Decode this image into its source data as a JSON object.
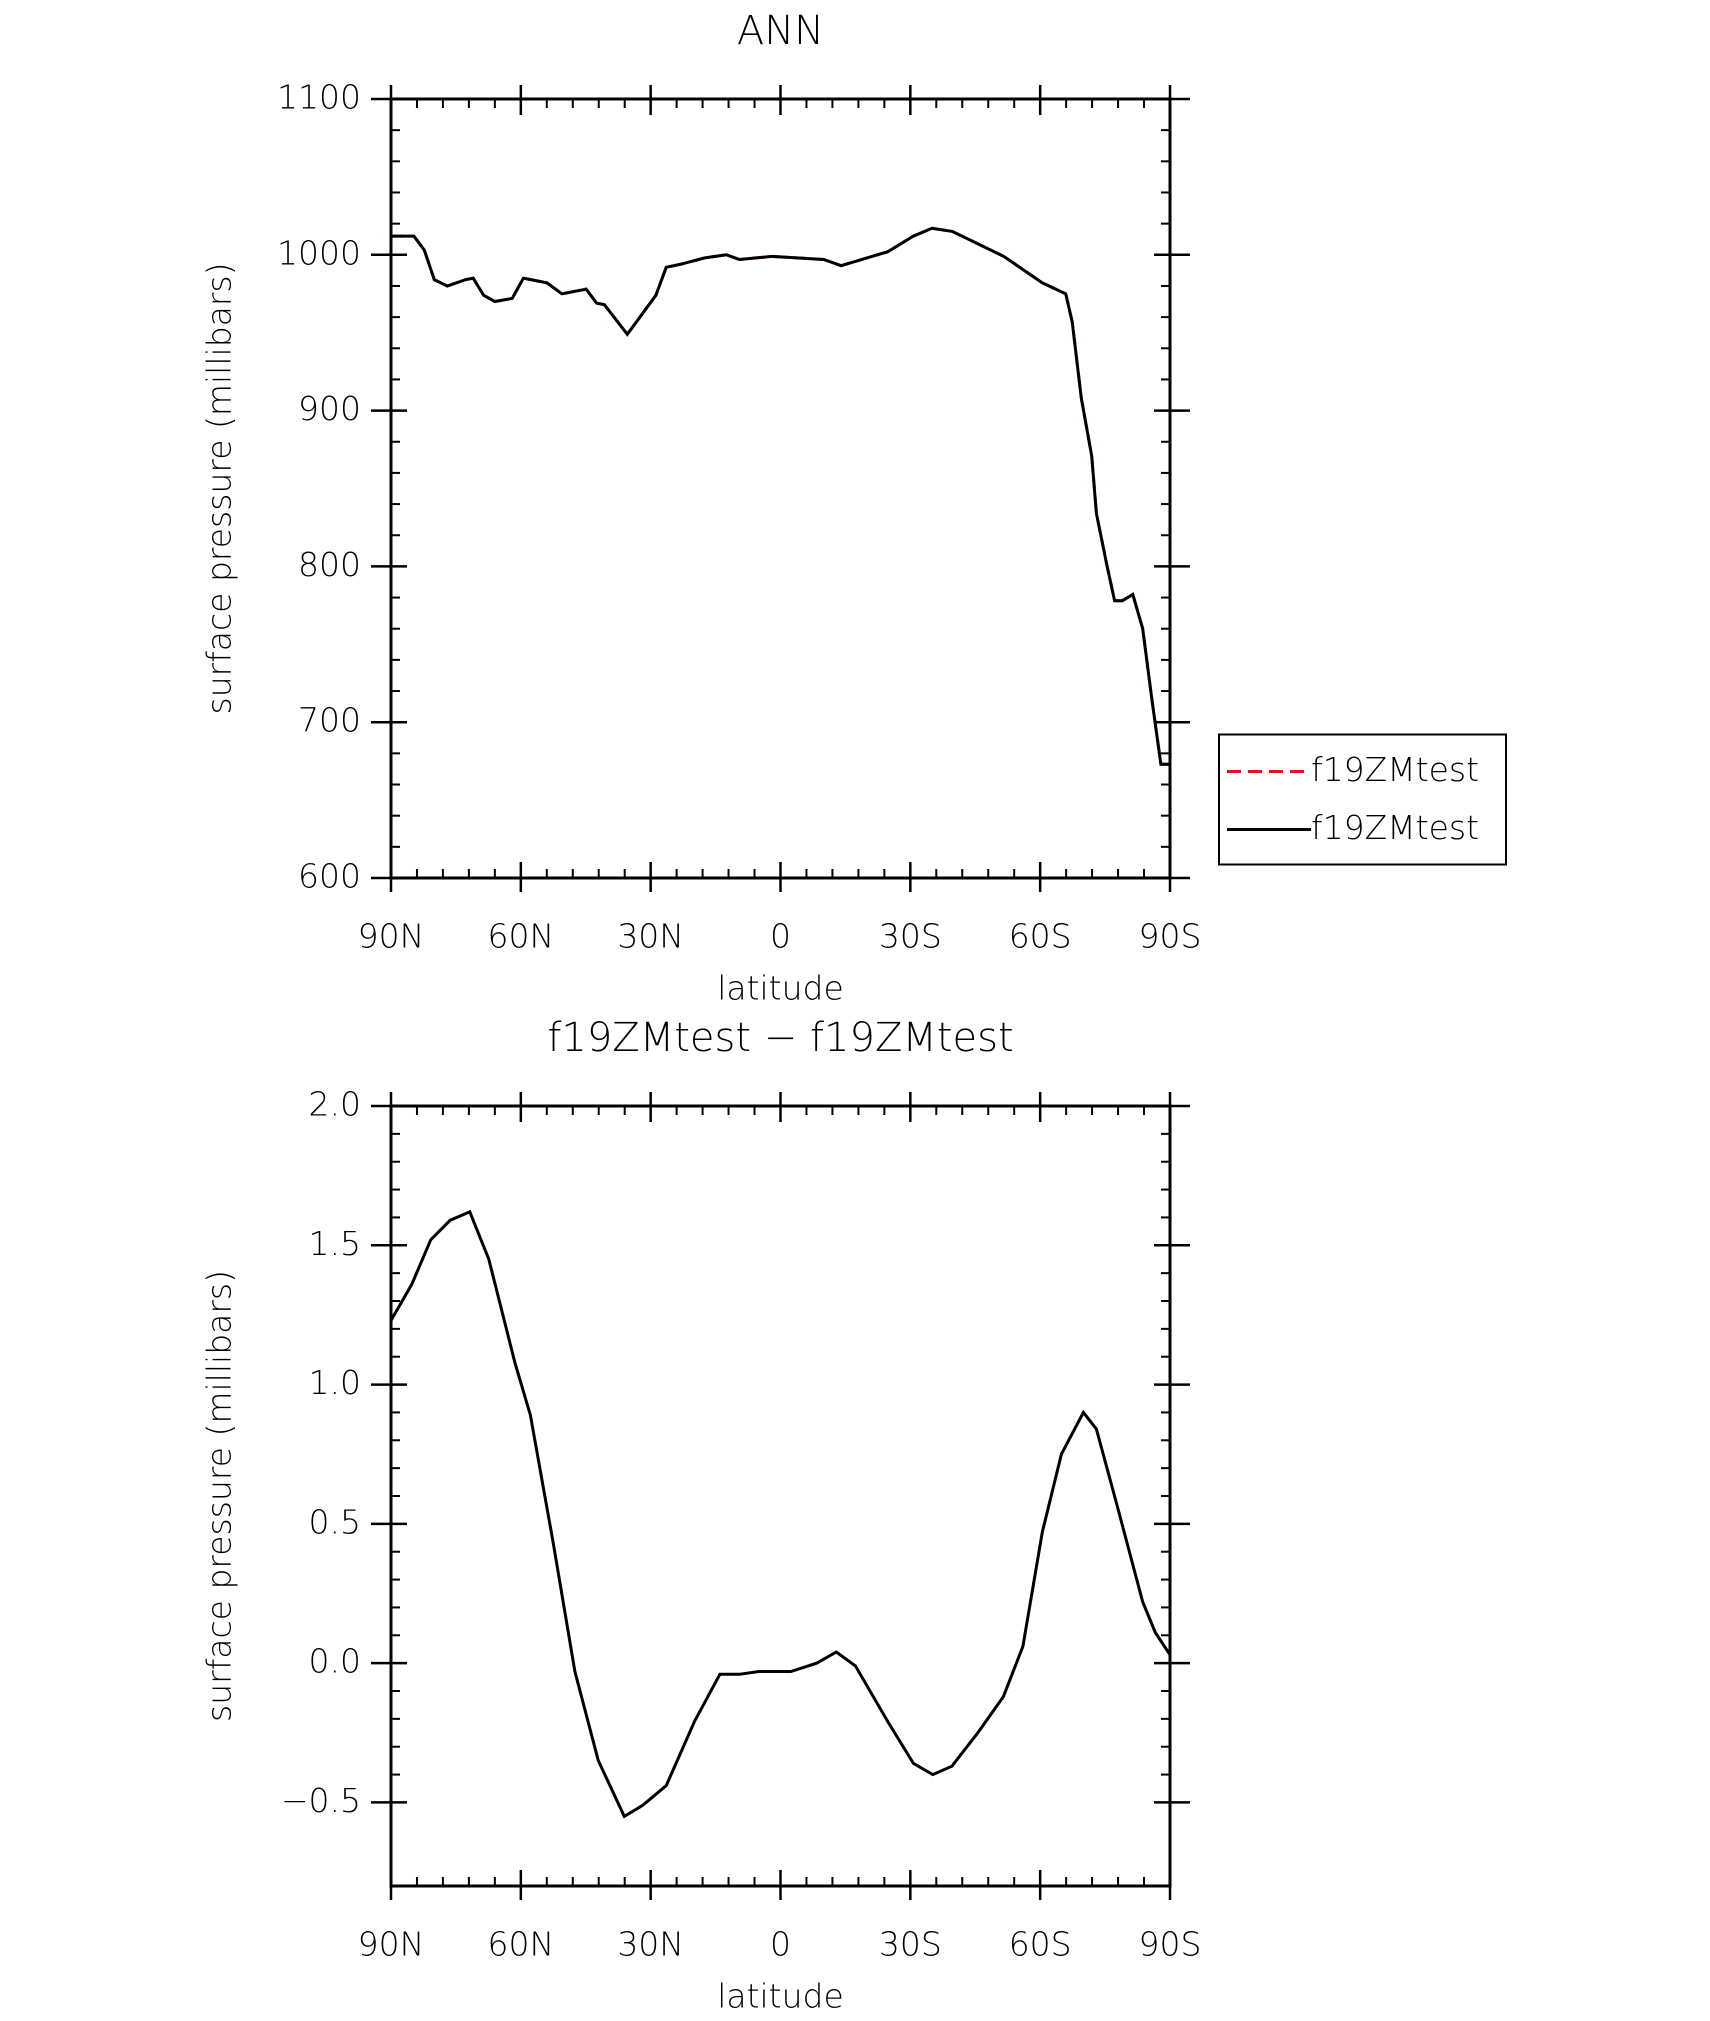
{
  "chart_data": [
    {
      "type": "line",
      "title": "ANN",
      "xlabel": "latitude",
      "ylabel": "surface pressure (millibars)",
      "x": [
        90,
        84.7,
        82.3,
        80,
        77,
        72.8,
        71,
        68.6,
        66,
        62,
        59.4,
        54,
        50.5,
        44.9,
        42.5,
        40.7,
        35.4,
        28.8,
        26.4,
        22.9,
        17.5,
        12.5,
        9.5,
        2,
        -10,
        -14,
        -24.8,
        -30.7,
        -35,
        -39.7,
        -51.6,
        -60.5,
        -65.9,
        -67.4,
        -69.5,
        -71.9,
        -73,
        -75.4,
        -77.2,
        -79,
        -81.4,
        -83.7,
        -85.8,
        -87.9,
        -90
      ],
      "series": [
        {
          "name": "f19ZMtest",
          "color": "#e8141b",
          "dash": true,
          "values": [
            1012,
            1012,
            1003,
            984,
            980,
            984,
            985,
            974,
            970,
            972,
            985,
            982,
            975,
            978,
            969,
            968,
            949,
            974,
            992,
            994,
            998,
            1000,
            997,
            999,
            997,
            993,
            1002,
            1012,
            1017,
            1015,
            999,
            982,
            975,
            957,
            908,
            871,
            834,
            801,
            778,
            778,
            782,
            760,
            715,
            673,
            673
          ]
        },
        {
          "name": "f19ZMtest",
          "color": "#000000",
          "dash": false,
          "values": [
            1012,
            1012,
            1003,
            984,
            980,
            984,
            985,
            974,
            970,
            972,
            985,
            982,
            975,
            978,
            969,
            968,
            949,
            974,
            992,
            994,
            998,
            1000,
            997,
            999,
            997,
            993,
            1002,
            1012,
            1017,
            1015,
            999,
            982,
            975,
            957,
            908,
            871,
            834,
            801,
            778,
            778,
            782,
            760,
            715,
            673,
            673
          ]
        }
      ],
      "xlim": [
        90,
        -90
      ],
      "xticks": [
        {
          "value": 90,
          "label": "90N"
        },
        {
          "value": 60,
          "label": "60N"
        },
        {
          "value": 30,
          "label": "30N"
        },
        0,
        {
          "value": -30,
          "label": "30S"
        },
        {
          "value": -60,
          "label": "60S"
        },
        {
          "value": -90,
          "label": "90S"
        }
      ],
      "ylim": [
        600,
        1100
      ],
      "yticks": [
        600,
        700,
        800,
        900,
        1000,
        1100
      ],
      "legend": "right"
    },
    {
      "type": "line",
      "title": "f19ZMtest − f19ZMtest",
      "xlabel": "latitude",
      "ylabel": "surface pressure (millibars)",
      "x": [
        90,
        85.2,
        80.8,
        76.3,
        71.8,
        67.4,
        61.4,
        57.8,
        52.5,
        47.5,
        42.1,
        36.1,
        31.8,
        26.4,
        19.9,
        14,
        9.5,
        5,
        2,
        -2.4,
        -8.4,
        -12.9,
        -17.3,
        -24.8,
        -30.7,
        -35.2,
        -39.6,
        -45.6,
        -51.5,
        -56,
        -60.5,
        -64.9,
        -70,
        -73,
        -77.7,
        -83.7,
        -86.6,
        -90
      ],
      "series": [
        {
          "color": "#000000",
          "dash": false,
          "values": [
            1.23,
            1.36,
            1.52,
            1.59,
            1.62,
            1.45,
            1.08,
            0.89,
            0.43,
            -0.03,
            -0.35,
            -0.55,
            -0.51,
            -0.44,
            -0.21,
            -0.04,
            -0.04,
            -0.03,
            -0.03,
            -0.03,
            0.0,
            0.04,
            -0.01,
            -0.21,
            -0.36,
            -0.4,
            -0.37,
            -0.25,
            -0.12,
            0.06,
            0.47,
            0.75,
            0.9,
            0.84,
            0.57,
            0.22,
            0.11,
            0.03
          ]
        }
      ],
      "xlim": [
        90,
        -90
      ],
      "xticks": [
        {
          "value": 90,
          "label": "90N"
        },
        {
          "value": 60,
          "label": "60N"
        },
        {
          "value": 30,
          "label": "30N"
        },
        0,
        {
          "value": -30,
          "label": "30S"
        },
        {
          "value": -60,
          "label": "60S"
        },
        {
          "value": -90,
          "label": "90S"
        }
      ],
      "ylim": [
        -0.8,
        2.0
      ],
      "yticks": [
        {
          "value": -0.5,
          "label": "−0.5"
        },
        {
          "value": 0,
          "label": "0.0"
        },
        0.5,
        {
          "value": 1,
          "label": "1.0"
        },
        1.5,
        {
          "value": 2,
          "label": "2.0"
        }
      ]
    }
  ]
}
